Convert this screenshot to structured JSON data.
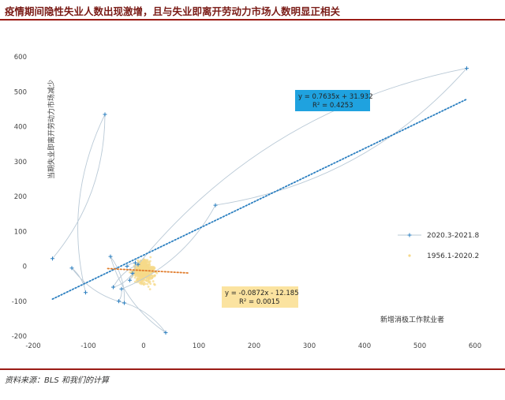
{
  "page": {
    "title": "疫情期间隐性失业人数出现激增，且与失业即离开劳动力市场人数明显正相关",
    "source": "资料来源：BLS 和我们的计算"
  },
  "colors": {
    "brand": "#9b1c16",
    "series1": "#7fb8d8",
    "series2": "#f5d98a",
    "trend1": "#2b7fc0",
    "trend2": "#e07b2a",
    "eq1_bg": "#1fa2df",
    "eq2_bg": "#fbe3a0"
  },
  "chart_data": {
    "type": "scatter",
    "title": "疫情期间隐性失业人数出现激增，且与失业即离开劳动力市场人数明显正相关",
    "xlabel": "新增消极工作就业者",
    "ylabel": "当期失业即离开劳动力市场减少",
    "xlim": [
      -200,
      600
    ],
    "ylim": [
      -200,
      600
    ],
    "xticks": [
      -200,
      -100,
      0,
      100,
      200,
      300,
      400,
      500,
      600
    ],
    "yticks": [
      -200,
      -100,
      0,
      100,
      200,
      300,
      400,
      500,
      600
    ],
    "grid": false,
    "legend_position": "right",
    "series": [
      {
        "name": "2020.3-2021.8",
        "style": "line-with-markers",
        "points": [
          [
            -165,
            22
          ],
          [
            -70,
            435
          ],
          [
            -105,
            -75
          ],
          [
            -130,
            -5
          ],
          [
            -35,
            -105
          ],
          [
            -60,
            28
          ],
          [
            40,
            -190
          ],
          [
            -45,
            -100
          ],
          [
            -40,
            -65
          ],
          [
            130,
            175
          ],
          [
            585,
            567
          ],
          [
            -10,
            5
          ],
          [
            -55,
            -60
          ],
          [
            -20,
            -20
          ],
          [
            -25,
            -40
          ],
          [
            -15,
            10
          ],
          [
            -30,
            0
          ]
        ]
      },
      {
        "name": "1956.1-2020.2",
        "style": "scatter"
      }
    ],
    "trendlines": [
      {
        "series": "2020.3-2021.8",
        "equation": "y = 0.7635x + 31.932",
        "r2": "R² = 0.4253",
        "slope": 0.7635,
        "intercept": 31.932,
        "x_range": [
          -165,
          585
        ]
      },
      {
        "series": "1956.1-2020.2",
        "equation": "y = -0.0872x - 12.185",
        "r2": "R² = 0.0015",
        "slope": -0.0872,
        "intercept": -12.185,
        "x_range": [
          -65,
          80
        ]
      }
    ]
  }
}
